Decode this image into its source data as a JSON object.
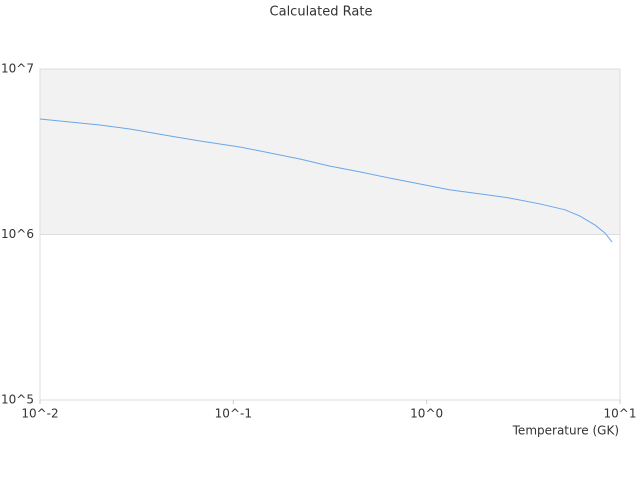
{
  "chart_data": {
    "type": "line",
    "title": "Calculated Rate",
    "x_label": "Temperature (GK)",
    "xscale": "log",
    "yscale": "log",
    "xlim": [
      0.01,
      10
    ],
    "ylim": [
      100000,
      10000000
    ],
    "xticks": [
      {
        "value": 0.01,
        "label": "10^-2"
      },
      {
        "value": 0.1,
        "label": "10^-1"
      },
      {
        "value": 1,
        "label": "10^0"
      },
      {
        "value": 10,
        "label": "10^1"
      }
    ],
    "yticks": [
      {
        "value": 100000,
        "label": "10^5"
      },
      {
        "value": 1000000,
        "label": "10^6"
      },
      {
        "value": 10000000,
        "label": "10^7"
      }
    ],
    "band_color": "#f2f2f2",
    "x": [
      0.01,
      0.0204,
      0.0292,
      0.0471,
      0.0673,
      0.108,
      0.155,
      0.221,
      0.316,
      0.452,
      0.647,
      0.924,
      1.32,
      1.89,
      2.7,
      3.86,
      5.2,
      6.22,
      7.43,
      8.37,
      9.1
    ],
    "series": [
      {
        "color": "#6aa7e8",
        "values": [
          4990000,
          4590000,
          4340000,
          3940000,
          3670000,
          3380000,
          3110000,
          2860000,
          2590000,
          2390000,
          2190000,
          2020000,
          1860000,
          1760000,
          1660000,
          1530000,
          1410000,
          1290000,
          1140000,
          1020000,
          900000
        ]
      }
    ]
  }
}
